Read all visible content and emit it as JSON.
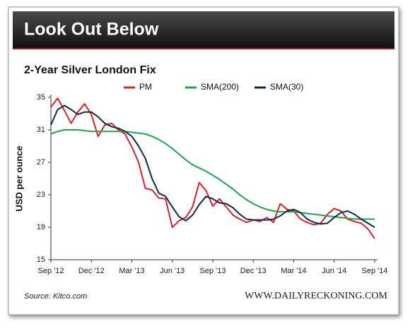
{
  "chart_data": {
    "type": "line",
    "header": "Look Out Below",
    "title": "2-Year Silver London Fix",
    "y_label": "USD per ounce",
    "source": "Source: Kitco.com",
    "brand": "WWW.DAILYRECKONING.COM",
    "x": [
      0,
      0.5,
      1,
      1.5,
      2,
      2.5,
      3,
      3.5,
      4,
      4.5,
      5,
      5.5,
      6,
      6.5,
      7,
      7.5,
      8,
      8.5,
      9,
      9.5,
      10,
      10.5,
      11,
      11.5,
      12,
      12.5,
      13,
      13.5,
      14,
      14.5,
      15,
      15.5,
      16,
      16.5,
      17,
      17.5,
      18,
      18.5,
      19,
      19.5,
      20,
      20.5,
      21,
      21.5,
      22,
      22.5,
      23,
      23.5,
      24
    ],
    "xlim": [
      0,
      24
    ],
    "xticks": [
      {
        "value": 0,
        "label": "Sep '12"
      },
      {
        "value": 3,
        "label": "Dec '12"
      },
      {
        "value": 6,
        "label": "Mar '13"
      },
      {
        "value": 9,
        "label": "Jun '13"
      },
      {
        "value": 12,
        "label": "Sep '13"
      },
      {
        "value": 15,
        "label": "Dec '13"
      },
      {
        "value": 18,
        "label": "Mar '14"
      },
      {
        "value": 21,
        "label": "Jun '14"
      },
      {
        "value": 24,
        "label": "Sep '14"
      }
    ],
    "ylim": [
      15,
      35
    ],
    "yticks": [
      15,
      19,
      23,
      27,
      31,
      35
    ],
    "grid": false,
    "series": [
      {
        "name": "PM",
        "color": "#e31e26",
        "values": [
          33.8,
          34.9,
          33.4,
          31.8,
          33.2,
          34.2,
          32.9,
          30.2,
          31.6,
          31.8,
          31.0,
          30.5,
          28.9,
          27.0,
          23.8,
          23.6,
          22.6,
          22.5,
          19.0,
          19.8,
          20.2,
          21.5,
          24.5,
          23.5,
          21.6,
          22.5,
          21.5,
          20.5,
          20.0,
          19.6,
          19.9,
          19.7,
          20.2,
          19.6,
          21.9,
          21.2,
          21.0,
          20.0,
          19.6,
          19.3,
          19.5,
          20.6,
          21.3,
          21.0,
          20.0,
          19.7,
          19.5,
          18.8,
          17.6
        ]
      },
      {
        "name": "SMA(200)",
        "color": "#1fa64a",
        "values": [
          30.5,
          30.8,
          31.0,
          31.0,
          31.0,
          30.9,
          30.8,
          30.8,
          30.8,
          30.8,
          30.8,
          30.8,
          30.7,
          30.6,
          30.5,
          30.2,
          29.8,
          29.3,
          28.7,
          28.0,
          27.3,
          26.7,
          26.3,
          25.9,
          25.4,
          24.9,
          24.3,
          23.7,
          23.0,
          22.4,
          21.9,
          21.5,
          21.2,
          21.0,
          20.9,
          20.9,
          20.9,
          20.8,
          20.7,
          20.6,
          20.5,
          20.4,
          20.3,
          20.2,
          20.1,
          20.0,
          20.0,
          20.0,
          20.0
        ]
      },
      {
        "name": "SMA(30)",
        "color": "#0d2b45",
        "values": [
          31.6,
          33.5,
          34.0,
          33.5,
          32.9,
          33.2,
          33.2,
          32.6,
          31.8,
          31.4,
          31.2,
          30.8,
          30.2,
          29.0,
          27.5,
          25.0,
          23.2,
          22.8,
          21.5,
          20.3,
          19.8,
          20.5,
          21.8,
          22.8,
          22.5,
          22.0,
          21.9,
          21.4,
          20.6,
          20.0,
          19.9,
          19.9,
          19.9,
          20.0,
          20.4,
          21.0,
          21.2,
          20.8,
          20.0,
          19.6,
          19.4,
          19.5,
          20.2,
          20.8,
          21.0,
          20.6,
          20.0,
          19.5,
          19.0
        ]
      }
    ]
  }
}
